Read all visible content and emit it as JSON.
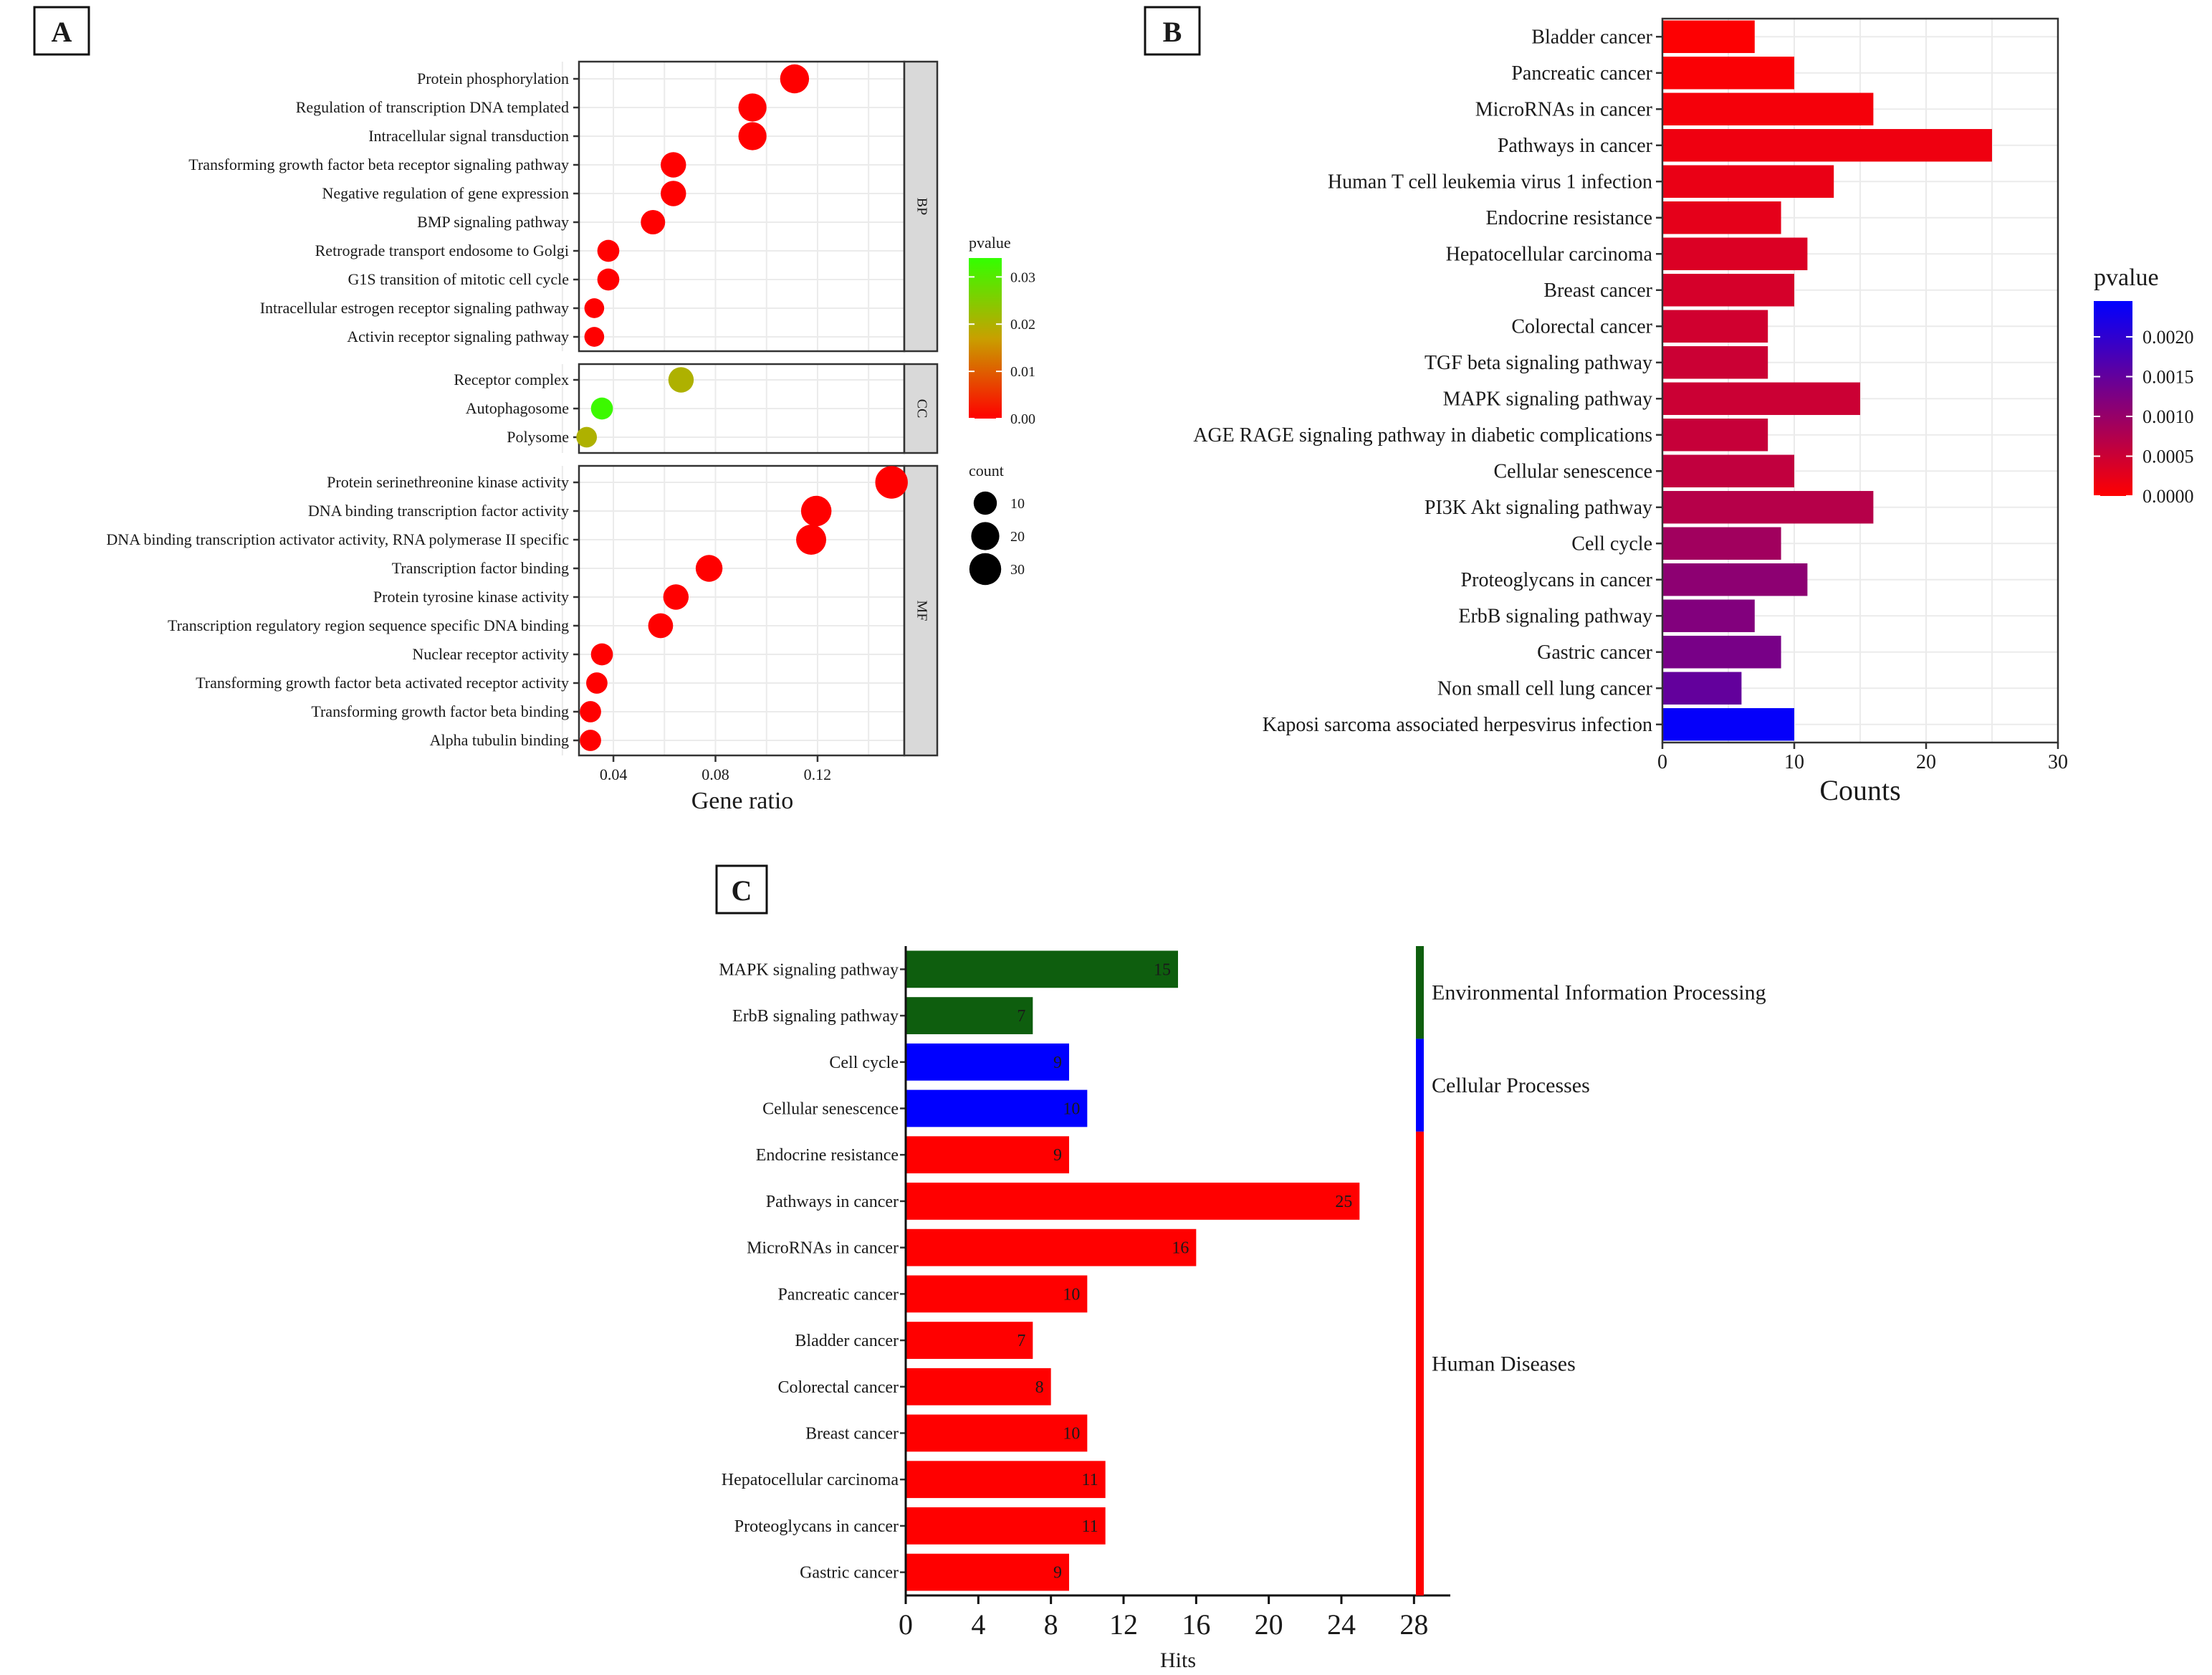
{
  "colors": {
    "red": "#ff0000",
    "orange": "#d8861c",
    "green": "#33ff00",
    "blue": "#0000ff",
    "dark_green": "#0e5e0e",
    "purple": "#9900dd",
    "crimson": "#e8004d"
  },
  "chart_data": [
    {
      "panel": "A",
      "type": "scatter",
      "xlabel": "Gene ratio",
      "xticks": [
        0.04,
        0.08,
        0.12
      ],
      "xlim": [
        0.0265,
        0.154
      ],
      "facets": [
        {
          "name": "BP",
          "terms": [
            {
              "term": "Protein phosphorylation",
              "ratio": 0.111,
              "count": 22,
              "pvalue": 0.0
            },
            {
              "term": "Regulation of transcription DNA templated",
              "ratio": 0.0945,
              "count": 20,
              "pvalue": 0.0
            },
            {
              "term": "Intracellular signal transduction",
              "ratio": 0.0945,
              "count": 20,
              "pvalue": 0.0
            },
            {
              "term": "Transforming growth factor beta receptor signaling pathway",
              "ratio": 0.0635,
              "count": 14,
              "pvalue": 0.0
            },
            {
              "term": "Negative regulation of gene expression",
              "ratio": 0.0635,
              "count": 14,
              "pvalue": 0.0
            },
            {
              "term": "BMP signaling pathway",
              "ratio": 0.0555,
              "count": 12,
              "pvalue": 0.0
            },
            {
              "term": "Retrograde transport endosome to Golgi",
              "ratio": 0.038,
              "count": 8,
              "pvalue": 0.0
            },
            {
              "term": "G1S transition of mitotic cell cycle",
              "ratio": 0.038,
              "count": 8,
              "pvalue": 0.0
            },
            {
              "term": "Intracellular estrogen receptor signaling pathway",
              "ratio": 0.0325,
              "count": 5,
              "pvalue": 0.0
            },
            {
              "term": "Activin receptor signaling pathway",
              "ratio": 0.0325,
              "count": 5,
              "pvalue": 0.0
            }
          ]
        },
        {
          "name": "CC",
          "terms": [
            {
              "term": "Receptor complex",
              "ratio": 0.0665,
              "count": 14,
              "pvalue": 0.02
            },
            {
              "term": "Autophagosome",
              "ratio": 0.0355,
              "count": 8,
              "pvalue": 0.033
            },
            {
              "term": "Polysome",
              "ratio": 0.0295,
              "count": 6,
              "pvalue": 0.02
            }
          ]
        },
        {
          "name": "MF",
          "terms": [
            {
              "term": "Protein serinethreonine kinase activity",
              "ratio": 0.149,
              "count": 32,
              "pvalue": 0.0
            },
            {
              "term": "DNA binding transcription factor activity",
              "ratio": 0.1195,
              "count": 26,
              "pvalue": 0.0
            },
            {
              "term": "DNA binding transcription activator activity, RNA polymerase II specific",
              "ratio": 0.1175,
              "count": 25,
              "pvalue": 0.0
            },
            {
              "term": "Transcription factor binding",
              "ratio": 0.0775,
              "count": 17,
              "pvalue": 0.0
            },
            {
              "term": "Protein tyrosine kinase activity",
              "ratio": 0.0645,
              "count": 14,
              "pvalue": 0.0
            },
            {
              "term": "Transcription regulatory region sequence specific DNA binding",
              "ratio": 0.0585,
              "count": 13,
              "pvalue": 0.0
            },
            {
              "term": "Nuclear receptor activity",
              "ratio": 0.0355,
              "count": 8,
              "pvalue": 0.0
            },
            {
              "term": "Transforming growth factor beta activated receptor activity",
              "ratio": 0.0335,
              "count": 7,
              "pvalue": 0.0
            },
            {
              "term": "Transforming growth factor beta binding",
              "ratio": 0.031,
              "count": 7,
              "pvalue": 0.0
            },
            {
              "term": "Alpha tubulin binding",
              "ratio": 0.031,
              "count": 7,
              "pvalue": 0.0
            }
          ]
        }
      ],
      "legend_color": {
        "title": "pvalue",
        "ticks": [
          "0.03",
          "0.02",
          "0.01",
          "0.00"
        ],
        "range": [
          0,
          0.034
        ],
        "low": "#ff0000",
        "mid": "#c8a000",
        "high": "#33ff00"
      },
      "legend_size": {
        "title": "count",
        "ticks": [
          "10",
          "20",
          "30"
        ]
      }
    },
    {
      "panel": "B",
      "type": "bar",
      "orientation": "horizontal",
      "xlabel": "Counts",
      "xticks": [
        0,
        10,
        20,
        30
      ],
      "xlim": [
        0,
        30
      ],
      "categories": [
        "Bladder cancer",
        "Pancreatic cancer",
        "MicroRNAs in cancer",
        "Pathways in cancer",
        "Human T cell leukemia virus 1 infection",
        "Endocrine resistance",
        "Hepatocellular carcinoma",
        "Breast cancer",
        "Colorectal cancer",
        "TGF beta signaling pathway",
        "MAPK signaling pathway",
        "AGE RAGE signaling pathway in diabetic complications",
        "Cellular senescence",
        "PI3K Akt signaling pathway",
        "Cell cycle",
        "Proteoglycans in cancer",
        "ErbB signaling pathway",
        "Gastric cancer",
        "Non small cell lung cancer",
        "Kaposi sarcoma associated herpesvirus infection"
      ],
      "values": [
        7,
        10,
        16,
        25,
        13,
        9,
        11,
        10,
        8,
        8,
        15,
        8,
        10,
        16,
        9,
        11,
        7,
        9,
        6,
        10
      ],
      "pvalues": [
        2e-05,
        5e-05,
        0.0001,
        0.00015,
        0.0002,
        0.00025,
        0.00035,
        0.0004,
        0.00045,
        0.0005,
        0.0005,
        0.00055,
        0.0006,
        0.0007,
        0.0009,
        0.0011,
        0.0012,
        0.0013,
        0.0015,
        0.0024
      ],
      "legend_color": {
        "title": "pvalue",
        "ticks": [
          "0.0020",
          "0.0015",
          "0.0010",
          "0.0005",
          "0.0000"
        ],
        "range": [
          0,
          0.00245
        ],
        "low": "#ff0000",
        "high": "#0000ff"
      }
    },
    {
      "panel": "C",
      "type": "bar",
      "orientation": "horizontal",
      "xlabel": "Hits",
      "xticks": [
        0,
        4,
        8,
        12,
        16,
        20,
        24,
        28
      ],
      "xlim": [
        0,
        30
      ],
      "categories": [
        "MAPK signaling pathway",
        "ErbB signaling pathway",
        "Cell cycle",
        "Cellular senescence",
        "Endocrine resistance",
        "Pathways in cancer",
        "MicroRNAs in cancer",
        "Pancreatic cancer",
        "Bladder cancer",
        "Colorectal cancer",
        "Breast cancer",
        "Hepatocellular carcinoma",
        "Proteoglycans in cancer",
        "Gastric cancer"
      ],
      "values": [
        15,
        7,
        9,
        10,
        9,
        25,
        16,
        10,
        7,
        8,
        10,
        11,
        11,
        9
      ],
      "value_labels": [
        "15",
        "7",
        "9",
        "10",
        "9",
        "25",
        "16",
        "10",
        "7",
        "8",
        "10",
        "11",
        "11",
        "9"
      ],
      "groups": [
        {
          "name": "Environmental Information Processing",
          "from": 0,
          "to": 1,
          "color": "#0e5e0e"
        },
        {
          "name": "Cellular Processes",
          "from": 2,
          "to": 3,
          "color": "#0000ff"
        },
        {
          "name": "Human Diseases",
          "from": 4,
          "to": 13,
          "color": "#ff0000"
        }
      ]
    }
  ]
}
